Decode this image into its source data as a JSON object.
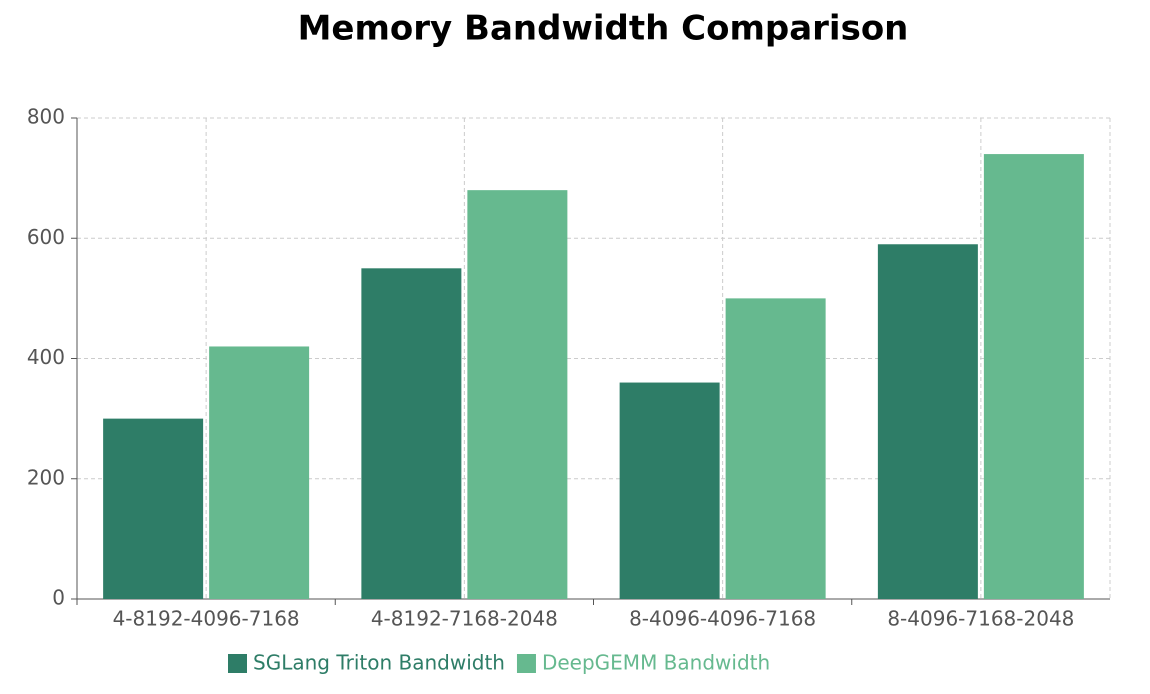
{
  "chart_data": {
    "type": "bar",
    "title": "Memory Bandwidth Comparison",
    "categories": [
      "4-8192-4096-7168",
      "4-8192-7168-2048",
      "8-4096-4096-7168",
      "8-4096-7168-2048"
    ],
    "series": [
      {
        "name": "SGLang Triton Bandwidth",
        "color": "#2e7d67",
        "values": [
          300,
          550,
          360,
          590
        ]
      },
      {
        "name": "DeepGEMM Bandwidth",
        "color": "#66b98f",
        "values": [
          420,
          680,
          500,
          740
        ]
      }
    ],
    "ylim": [
      0,
      800
    ],
    "yticks": [
      0,
      200,
      400,
      600,
      800
    ],
    "grid": true
  }
}
